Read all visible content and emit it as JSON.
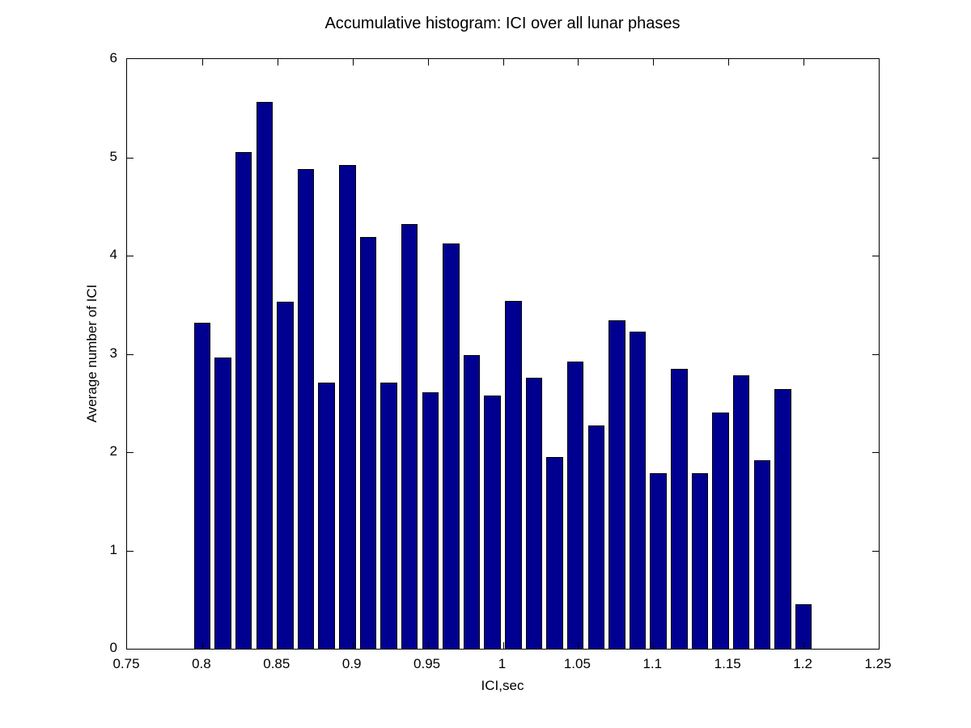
{
  "title": "Accumulative histogram: ICI over all lunar phases",
  "chart_data": {
    "type": "bar",
    "title": "Accumulative histogram: ICI over all lunar phases",
    "xlabel": "ICI,sec",
    "ylabel": "Average number of ICI",
    "xlim": [
      0.75,
      1.25
    ],
    "ylim": [
      0,
      6
    ],
    "grid": false,
    "legend": null,
    "x_ticks": [
      "0.75",
      "0.8",
      "0.85",
      "0.9",
      "0.95",
      "1",
      "1.05",
      "1.1",
      "1.15",
      "1.2",
      "1.25"
    ],
    "x_tick_values": [
      0.75,
      0.8,
      0.85,
      0.9,
      0.95,
      1.0,
      1.05,
      1.1,
      1.15,
      1.2,
      1.25
    ],
    "y_ticks": [
      "0",
      "1",
      "2",
      "3",
      "4",
      "5",
      "6"
    ],
    "y_tick_values": [
      0,
      1,
      2,
      3,
      4,
      5,
      6
    ],
    "bar_color": "#000090",
    "bar_edge_color": "#000000",
    "bar_width_fraction_of_bin": 0.8,
    "bin_step": 0.0137931,
    "x": [
      0.8,
      0.8138,
      0.8276,
      0.8414,
      0.8552,
      0.869,
      0.8828,
      0.8966,
      0.9103,
      0.9241,
      0.9379,
      0.9517,
      0.9655,
      0.9793,
      0.9931,
      1.0069,
      1.0207,
      1.0345,
      1.0483,
      1.0621,
      1.0759,
      1.0897,
      1.1034,
      1.1172,
      1.131,
      1.1448,
      1.1586,
      1.1724,
      1.1862,
      1.2
    ],
    "values": [
      3.32,
      2.96,
      5.05,
      5.56,
      3.53,
      4.88,
      2.71,
      4.92,
      4.19,
      2.71,
      4.32,
      2.61,
      4.12,
      2.99,
      2.58,
      3.54,
      2.76,
      1.95,
      2.92,
      2.27,
      3.34,
      3.23,
      1.79,
      2.85,
      1.79,
      2.4,
      2.78,
      1.92,
      2.64,
      0.45
    ]
  }
}
